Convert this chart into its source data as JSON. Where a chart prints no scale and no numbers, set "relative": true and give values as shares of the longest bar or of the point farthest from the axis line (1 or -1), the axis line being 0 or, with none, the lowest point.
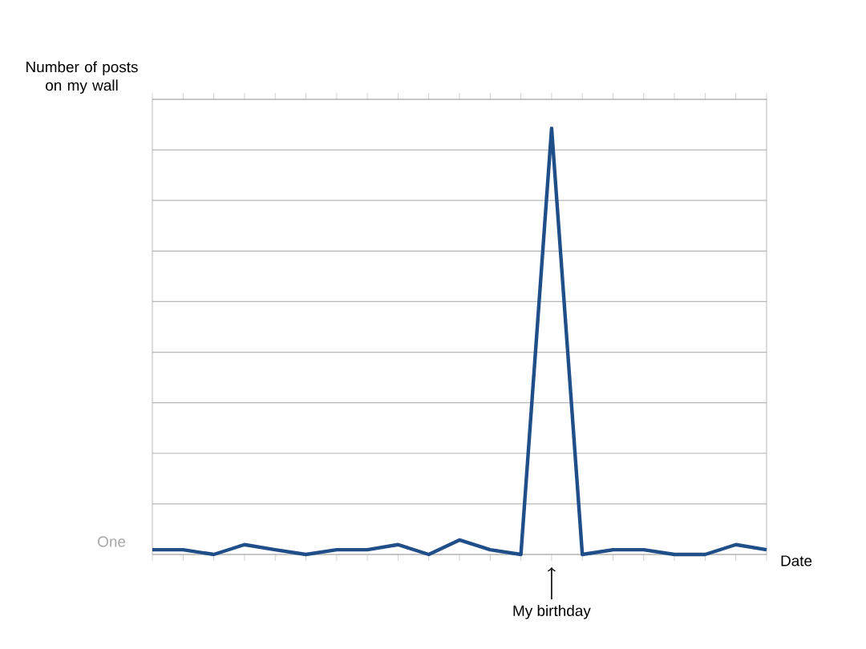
{
  "chart_data": {
    "type": "line",
    "relative": true,
    "grid": "y",
    "color": "#1f4e89",
    "xlabel": "Date",
    "ylabel": "Number of posts on my wall",
    "categories": [
      null,
      null,
      null,
      null,
      null,
      null,
      null,
      null,
      null,
      null,
      null,
      null,
      null,
      null,
      null,
      null,
      null,
      null,
      null,
      null,
      null
    ],
    "values": [
      0.011,
      0.011,
      0,
      0.023,
      0.011,
      0,
      0.011,
      0.011,
      0.023,
      0,
      0.034,
      0.011,
      0,
      1,
      0,
      0.011,
      0.011,
      0,
      0,
      0.023,
      0.011
    ],
    "annotations": [
      "One",
      "My birthday"
    ]
  }
}
